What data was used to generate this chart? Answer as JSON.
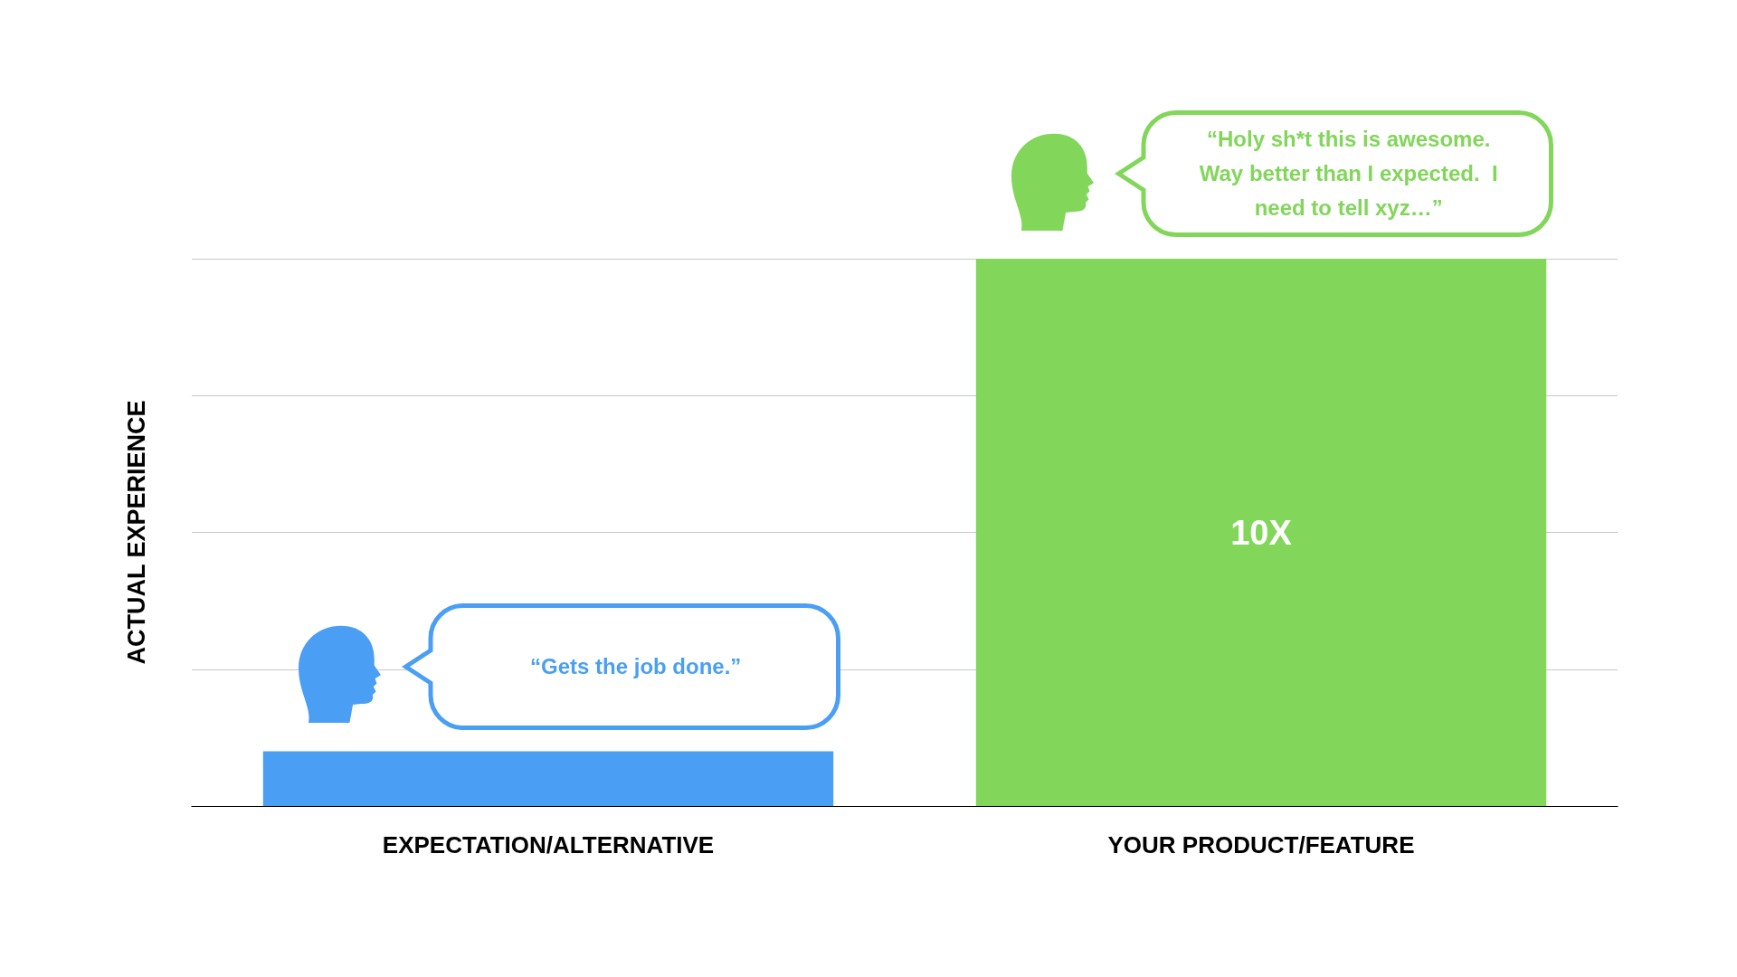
{
  "chart_data": {
    "type": "bar",
    "ylabel": "ACTUAL EXPERIENCE",
    "categories": [
      "EXPECTATION/ALTERNATIVE",
      "YOUR PRODUCT/FEATURE"
    ],
    "values": [
      1,
      10
    ],
    "colors": [
      "#4a9ff5",
      "#82d65a"
    ],
    "value_labels": [
      null,
      "10X"
    ],
    "ylim": [
      0,
      10
    ],
    "yticks": [
      {
        "value": 0,
        "label": null
      },
      {
        "value": 2.5,
        "label": null
      },
      {
        "value": 5,
        "label": null
      },
      {
        "value": 7.5,
        "label": null
      },
      {
        "value": 10,
        "label": null
      }
    ],
    "tick_labels": "x",
    "annotations": [
      "“Gets the job done.”",
      "“Holy sh*t this is awesome. Way better than I expected.  I need to tell xyz…”"
    ],
    "grid": "y"
  }
}
